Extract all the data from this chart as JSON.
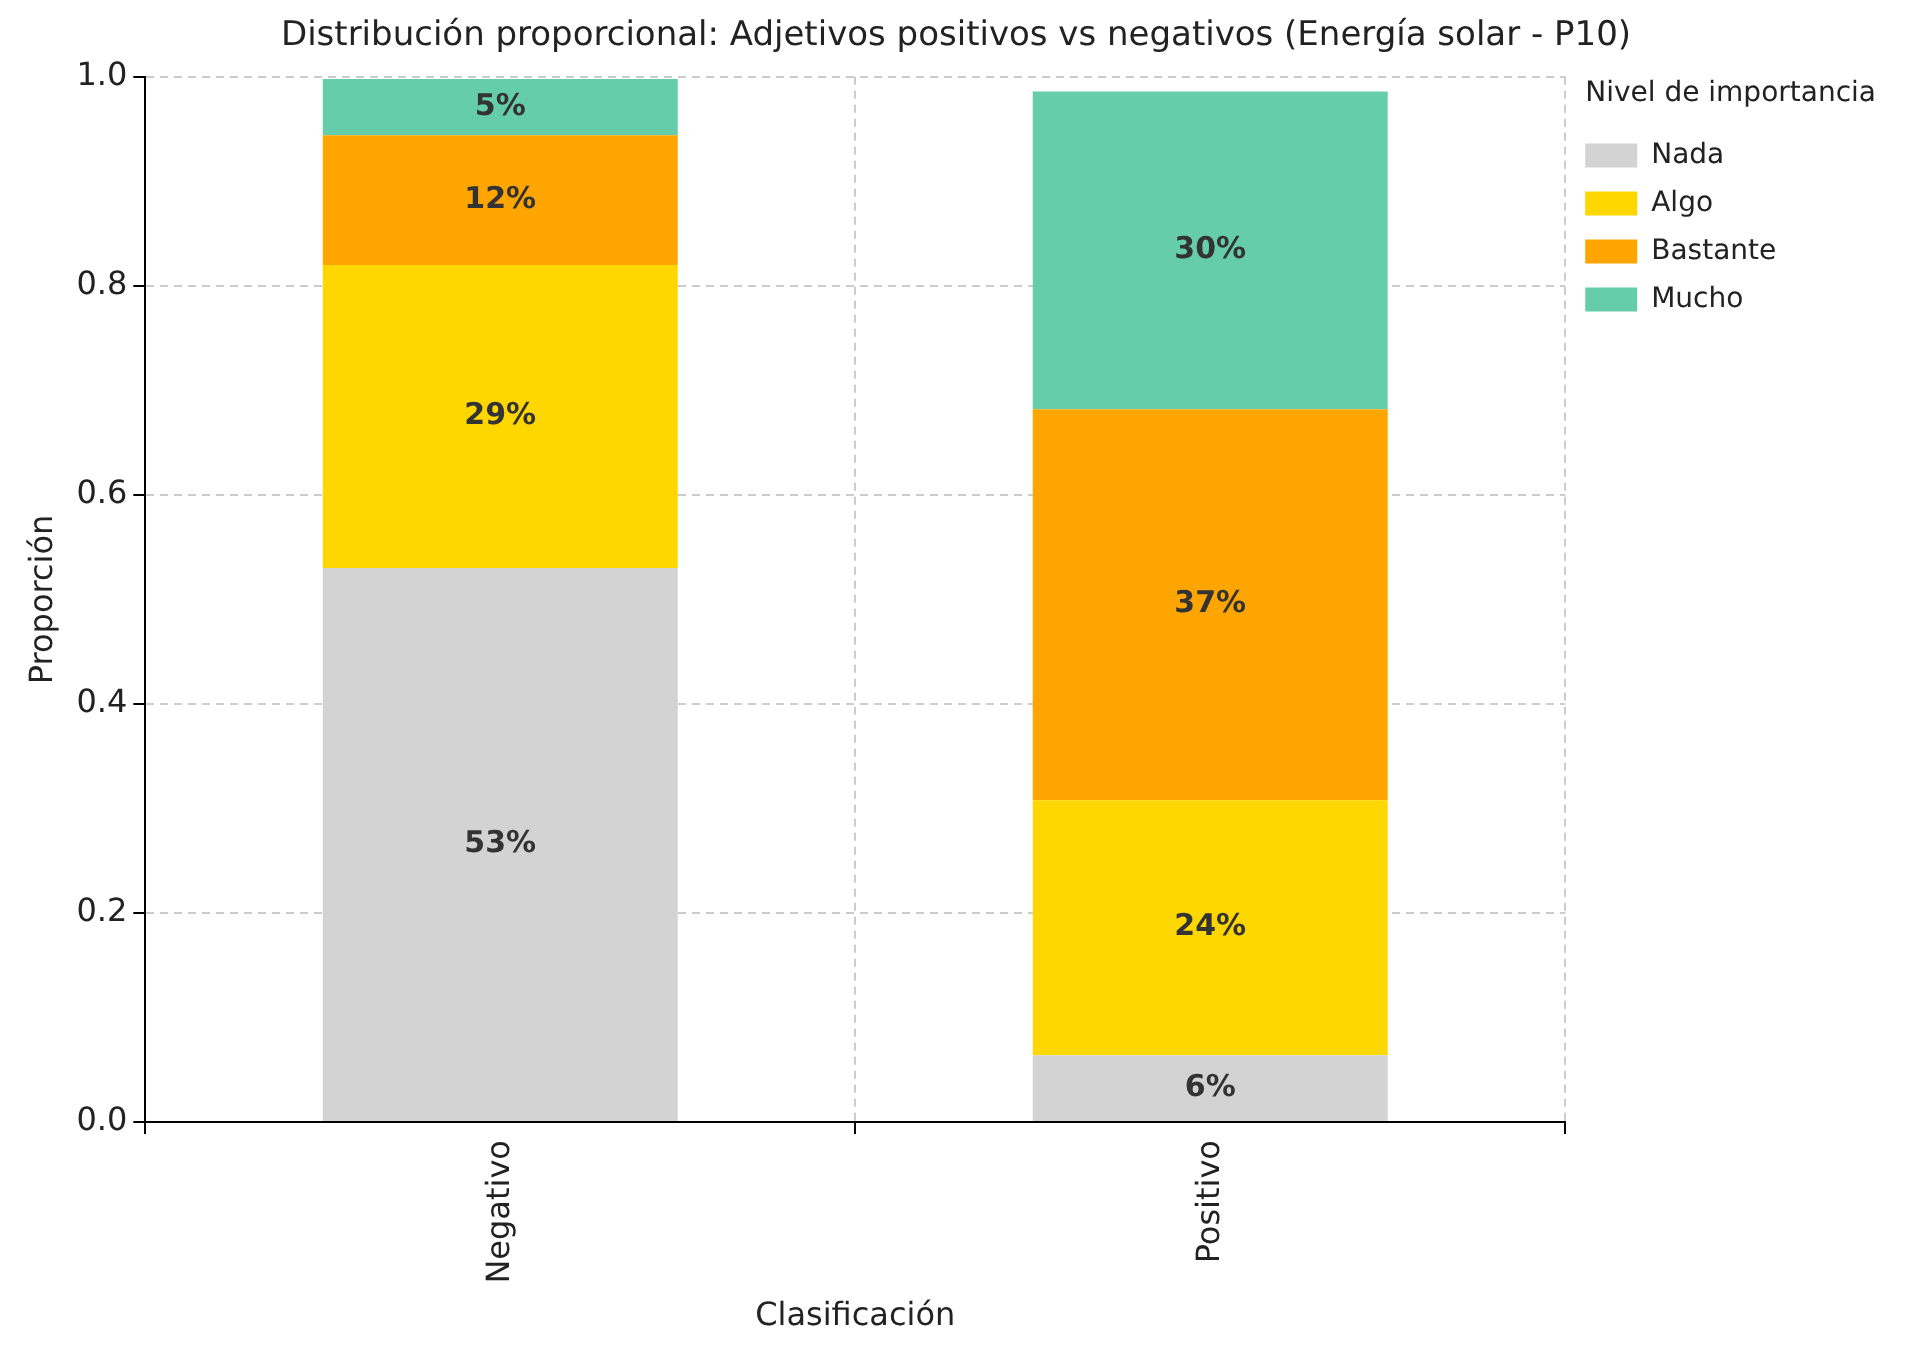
{
  "chart_data": {
    "type": "bar",
    "stacked": true,
    "title": "Distribución proporcional: Adjetivos positivos vs negativos (Energía solar - P10)",
    "xlabel": "Clasificación",
    "ylabel": "Proporción",
    "legend_title": "Nivel de importancia",
    "categories": [
      "Negativo",
      "Positivo"
    ],
    "series": [
      {
        "name": "Nada",
        "color": "#d3d3d3",
        "values": [
          0.53,
          0.064
        ],
        "value_labels": [
          "53%",
          "6%"
        ]
      },
      {
        "name": "Algo",
        "color": "#ffd700",
        "values": [
          0.29,
          0.244
        ],
        "value_labels": [
          "29%",
          "24%"
        ]
      },
      {
        "name": "Bastante",
        "color": "#ffa500",
        "values": [
          0.124,
          0.374
        ],
        "value_labels": [
          "12%",
          "37%"
        ]
      },
      {
        "name": "Mucho",
        "color": "#66cdaa",
        "values": [
          0.054,
          0.304
        ],
        "value_labels": [
          "5%",
          "30%"
        ]
      }
    ],
    "ylim": [
      0,
      1.0
    ],
    "yticks": [
      {
        "value": 0,
        "label": "0.0"
      },
      {
        "value": 0.2,
        "label": "0.2"
      },
      {
        "value": 0.4,
        "label": "0.4"
      },
      {
        "value": 0.6,
        "label": "0.6"
      },
      {
        "value": 0.8,
        "label": "0.8"
      },
      {
        "value": 1.0,
        "label": "1.0"
      }
    ],
    "grid": true,
    "legend": "top right"
  }
}
